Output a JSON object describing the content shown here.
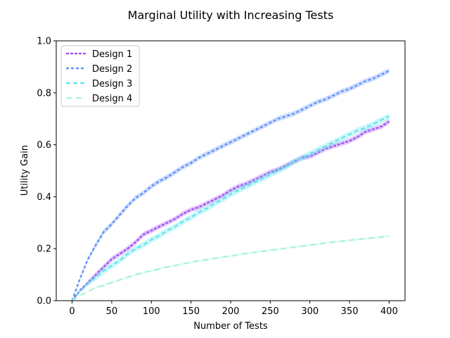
{
  "chart_data": {
    "type": "line",
    "title": "Marginal Utility with Increasing Tests",
    "xlabel": "Number of Tests",
    "ylabel": "Utility Gain",
    "xlim": [
      -20,
      420
    ],
    "ylim": [
      0,
      1.0
    ],
    "xticks": [
      0,
      50,
      100,
      150,
      200,
      250,
      300,
      350,
      400
    ],
    "xtick_labels": [
      "0",
      "50",
      "100",
      "150",
      "200",
      "250",
      "300",
      "350",
      "400"
    ],
    "yticks": [
      0.0,
      0.2,
      0.4,
      0.6,
      0.8,
      1.0
    ],
    "ytick_labels": [
      "0.0",
      "0.2",
      "0.4",
      "0.6",
      "0.8",
      "1.0"
    ],
    "grid": false,
    "legend_position": "upper-left",
    "x": [
      0,
      10,
      20,
      30,
      40,
      50,
      60,
      70,
      80,
      90,
      100,
      110,
      120,
      130,
      140,
      150,
      160,
      170,
      180,
      190,
      200,
      210,
      220,
      230,
      240,
      250,
      260,
      270,
      280,
      290,
      300,
      310,
      320,
      330,
      340,
      350,
      360,
      370,
      380,
      390,
      400
    ],
    "series": [
      {
        "name": "Design 1",
        "color": "#9d4cf3",
        "values": [
          0.0,
          0.04,
          0.07,
          0.1,
          0.13,
          0.16,
          0.18,
          0.2,
          0.225,
          0.255,
          0.27,
          0.285,
          0.3,
          0.315,
          0.335,
          0.35,
          0.36,
          0.375,
          0.39,
          0.405,
          0.425,
          0.44,
          0.45,
          0.465,
          0.48,
          0.495,
          0.505,
          0.52,
          0.535,
          0.55,
          0.555,
          0.57,
          0.585,
          0.595,
          0.605,
          0.615,
          0.63,
          0.65,
          0.66,
          0.67,
          0.69
        ],
        "band": 0.01
      },
      {
        "name": "Design 2",
        "color": "#5e91f7",
        "values": [
          0.0,
          0.085,
          0.16,
          0.215,
          0.265,
          0.295,
          0.33,
          0.365,
          0.395,
          0.415,
          0.44,
          0.46,
          0.475,
          0.495,
          0.515,
          0.53,
          0.55,
          0.565,
          0.58,
          0.595,
          0.61,
          0.625,
          0.64,
          0.655,
          0.67,
          0.685,
          0.7,
          0.71,
          0.72,
          0.735,
          0.75,
          0.765,
          0.775,
          0.79,
          0.805,
          0.815,
          0.83,
          0.845,
          0.855,
          0.87,
          0.885
        ],
        "band": 0.01
      },
      {
        "name": "Design 3",
        "color": "#5ee3ea",
        "values": [
          0.0,
          0.035,
          0.065,
          0.09,
          0.115,
          0.135,
          0.155,
          0.18,
          0.2,
          0.215,
          0.235,
          0.25,
          0.27,
          0.285,
          0.305,
          0.32,
          0.34,
          0.355,
          0.375,
          0.39,
          0.41,
          0.425,
          0.44,
          0.455,
          0.47,
          0.485,
          0.5,
          0.515,
          0.535,
          0.55,
          0.565,
          0.58,
          0.595,
          0.61,
          0.625,
          0.64,
          0.655,
          0.665,
          0.68,
          0.695,
          0.71
        ],
        "band": 0.012
      },
      {
        "name": "Design 4",
        "color": "#a7f5d2",
        "values": [
          0.0,
          0.02,
          0.035,
          0.05,
          0.06,
          0.07,
          0.08,
          0.09,
          0.1,
          0.108,
          0.115,
          0.122,
          0.13,
          0.135,
          0.142,
          0.148,
          0.153,
          0.158,
          0.163,
          0.168,
          0.172,
          0.177,
          0.182,
          0.186,
          0.19,
          0.194,
          0.198,
          0.202,
          0.206,
          0.21,
          0.214,
          0.218,
          0.222,
          0.226,
          0.229,
          0.232,
          0.236,
          0.239,
          0.242,
          0.245,
          0.248
        ],
        "band": 0.004
      }
    ]
  }
}
